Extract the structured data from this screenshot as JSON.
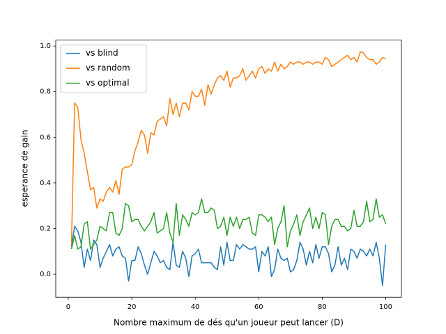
{
  "chart_data": {
    "type": "line",
    "xlabel": "Nombre maximum de dés qu'un joueur peut lancer (D)",
    "ylabel": "esperance de gain",
    "x": [
      1,
      2,
      3,
      4,
      5,
      6,
      7,
      8,
      9,
      10,
      11,
      12,
      13,
      14,
      15,
      16,
      17,
      18,
      19,
      20,
      21,
      22,
      23,
      24,
      25,
      26,
      27,
      28,
      29,
      30,
      31,
      32,
      33,
      34,
      35,
      36,
      37,
      38,
      39,
      40,
      41,
      42,
      43,
      44,
      45,
      46,
      47,
      48,
      49,
      50,
      51,
      52,
      53,
      54,
      55,
      56,
      57,
      58,
      59,
      60,
      61,
      62,
      63,
      64,
      65,
      66,
      67,
      68,
      69,
      70,
      71,
      72,
      73,
      74,
      75,
      76,
      77,
      78,
      79,
      80,
      81,
      82,
      83,
      84,
      85,
      86,
      87,
      88,
      89,
      90,
      91,
      92,
      93,
      94,
      95,
      96,
      97,
      98,
      99,
      100
    ],
    "series": [
      {
        "name": "vs blind",
        "color": "#1f77b4",
        "values": [
          0.12,
          0.21,
          0.19,
          0.14,
          0.03,
          0.11,
          0.06,
          0.15,
          0.13,
          0.03,
          0.07,
          0.1,
          0.13,
          0.08,
          0.11,
          0.12,
          0.08,
          0.07,
          -0.03,
          0.06,
          0.06,
          0.12,
          0.09,
          0.04,
          0.0,
          0.05,
          0.1,
          0.08,
          0.05,
          0.06,
          0.03,
          0.02,
          0.14,
          0.04,
          0.03,
          0.1,
          0.07,
          -0.01,
          0.08,
          0.09,
          0.11,
          0.05,
          0.05,
          0.05,
          0.05,
          0.03,
          0.02,
          0.12,
          0.04,
          0.14,
          0.06,
          0.06,
          0.13,
          0.11,
          0.13,
          0.12,
          0.11,
          0.11,
          0.12,
          0.01,
          0.1,
          0.08,
          0.12,
          -0.01,
          0.02,
          0.11,
          0.07,
          0.06,
          0.07,
          0.01,
          0.02,
          0.06,
          0.14,
          0.11,
          0.04,
          0.1,
          0.05,
          0.13,
          0.07,
          0.12,
          0.12,
          0.09,
          0.01,
          0.04,
          0.12,
          0.04,
          0.07,
          0.02,
          0.11,
          0.1,
          0.07,
          0.11,
          0.1,
          0.08,
          0.11,
          0.08,
          0.14,
          0.07,
          -0.05,
          0.13
        ]
      },
      {
        "name": "vs random",
        "color": "#ff7f0e",
        "values": [
          0.13,
          0.75,
          0.73,
          0.59,
          0.53,
          0.45,
          0.37,
          0.38,
          0.29,
          0.33,
          0.32,
          0.36,
          0.38,
          0.36,
          0.41,
          0.35,
          0.46,
          0.47,
          0.47,
          0.48,
          0.54,
          0.58,
          0.63,
          0.61,
          0.53,
          0.62,
          0.61,
          0.67,
          0.68,
          0.69,
          0.65,
          0.77,
          0.7,
          0.75,
          0.69,
          0.75,
          0.75,
          0.72,
          0.8,
          0.78,
          0.78,
          0.81,
          0.74,
          0.83,
          0.79,
          0.83,
          0.86,
          0.87,
          0.85,
          0.89,
          0.82,
          0.86,
          0.86,
          0.87,
          0.9,
          0.85,
          0.87,
          0.89,
          0.86,
          0.9,
          0.91,
          0.88,
          0.9,
          0.89,
          0.93,
          0.89,
          0.92,
          0.9,
          0.91,
          0.93,
          0.92,
          0.93,
          0.93,
          0.92,
          0.93,
          0.93,
          0.92,
          0.93,
          0.93,
          0.92,
          0.95,
          0.94,
          0.91,
          0.92,
          0.93,
          0.94,
          0.95,
          0.96,
          0.94,
          0.95,
          0.93,
          0.975,
          0.97,
          0.95,
          0.94,
          0.94,
          0.92,
          0.93,
          0.95,
          0.945
        ]
      },
      {
        "name": "vs optimal",
        "color": "#2ca02c",
        "values": [
          0.11,
          0.17,
          0.11,
          0.12,
          0.22,
          0.23,
          0.11,
          0.13,
          0.15,
          0.21,
          0.2,
          0.19,
          0.27,
          0.27,
          0.18,
          0.17,
          0.2,
          0.31,
          0.3,
          0.23,
          0.24,
          0.24,
          0.21,
          0.19,
          0.21,
          0.23,
          0.27,
          0.18,
          0.19,
          0.2,
          0.27,
          0.18,
          0.14,
          0.31,
          0.17,
          0.26,
          0.24,
          0.21,
          0.27,
          0.26,
          0.27,
          0.33,
          0.27,
          0.27,
          0.29,
          0.28,
          0.2,
          0.21,
          0.25,
          0.17,
          0.25,
          0.21,
          0.25,
          0.2,
          0.24,
          0.24,
          0.25,
          0.18,
          0.17,
          0.26,
          0.26,
          0.25,
          0.23,
          0.25,
          0.13,
          0.2,
          0.23,
          0.3,
          0.12,
          0.19,
          0.22,
          0.26,
          0.17,
          0.23,
          0.26,
          0.29,
          0.2,
          0.25,
          0.2,
          0.27,
          0.26,
          0.13,
          0.21,
          0.24,
          0.24,
          0.21,
          0.21,
          0.19,
          0.2,
          0.28,
          0.21,
          0.21,
          0.23,
          0.32,
          0.23,
          0.24,
          0.33,
          0.25,
          0.26,
          0.22
        ]
      }
    ],
    "xlim": [
      -3.95,
      104.95
    ],
    "ylim": [
      -0.101,
      1.026
    ],
    "xticks": [
      0,
      20,
      40,
      60,
      80,
      100
    ],
    "yticks": [
      {
        "value": 0,
        "label": "0.0"
      },
      {
        "value": 0.2,
        "label": "0.2"
      },
      {
        "value": 0.4,
        "label": "0.4"
      },
      {
        "value": 0.6,
        "label": "0.6"
      },
      {
        "value": 0.8,
        "label": "0.8"
      },
      {
        "value": 1.0,
        "label": "1.0"
      }
    ],
    "legend": "upper left",
    "grid": false
  }
}
